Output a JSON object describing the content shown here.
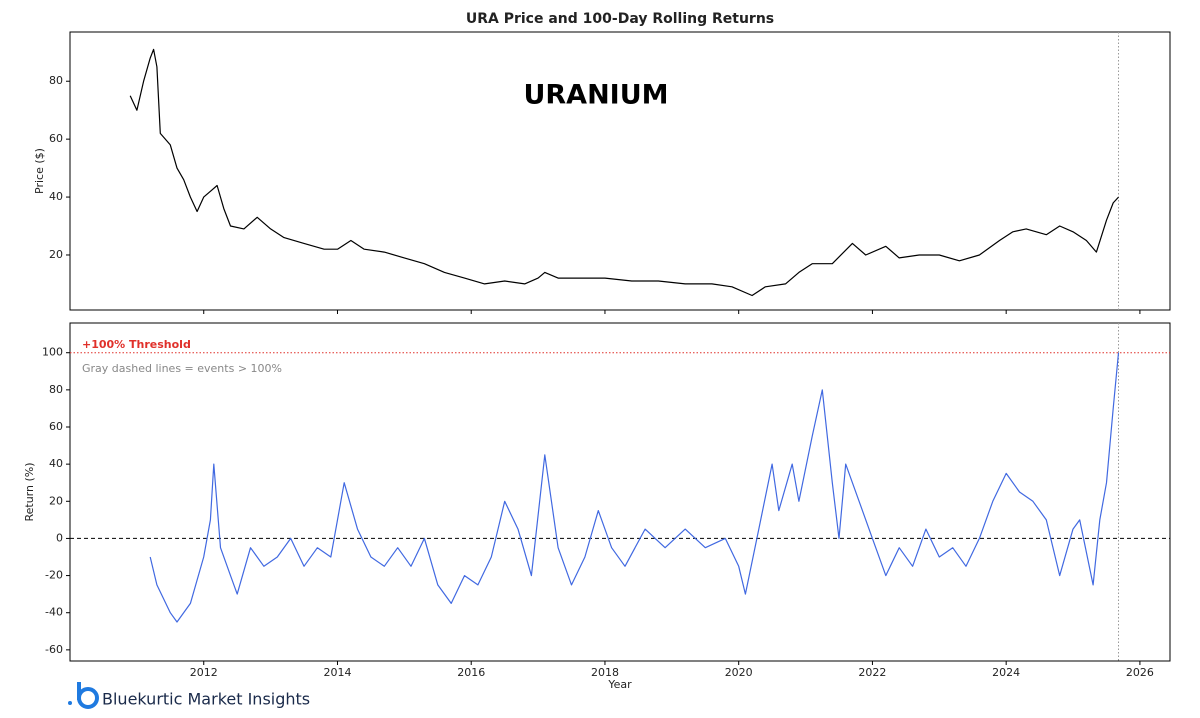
{
  "brand": "Bluekurtic Market Insights",
  "chart_data": [
    {
      "type": "line",
      "title": "URA Price and 100-Day Rolling Returns",
      "annotation": "URANIUM",
      "ylabel": "Price ($)",
      "xlim": [
        2010.0,
        2026.45
      ],
      "ylim": [
        1,
        97
      ],
      "xticks": [
        2012,
        2014,
        2016,
        2018,
        2020,
        2022,
        2024,
        2026
      ],
      "yticks": [
        20,
        40,
        60,
        80
      ],
      "events": [
        2025.68
      ],
      "series": [
        {
          "name": "URA Price",
          "color": "#000000",
          "x": [
            2010.9,
            2011.0,
            2011.1,
            2011.2,
            2011.25,
            2011.3,
            2011.35,
            2011.5,
            2011.6,
            2011.7,
            2011.8,
            2011.9,
            2012.0,
            2012.1,
            2012.2,
            2012.3,
            2012.4,
            2012.6,
            2012.8,
            2013.0,
            2013.2,
            2013.5,
            2013.8,
            2014.0,
            2014.2,
            2014.4,
            2014.7,
            2015.0,
            2015.3,
            2015.6,
            2015.9,
            2016.2,
            2016.5,
            2016.8,
            2017.0,
            2017.1,
            2017.3,
            2017.6,
            2018.0,
            2018.4,
            2018.8,
            2019.2,
            2019.6,
            2019.9,
            2020.2,
            2020.4,
            2020.7,
            2020.9,
            2021.1,
            2021.4,
            2021.7,
            2021.9,
            2022.2,
            2022.4,
            2022.7,
            2023.0,
            2023.3,
            2023.6,
            2023.9,
            2024.1,
            2024.3,
            2024.6,
            2024.8,
            2025.0,
            2025.2,
            2025.35,
            2025.5,
            2025.6,
            2025.68
          ],
          "values": [
            75,
            70,
            80,
            88,
            91,
            85,
            62,
            58,
            50,
            46,
            40,
            35,
            40,
            42,
            44,
            36,
            30,
            29,
            33,
            29,
            26,
            24,
            22,
            22,
            25,
            22,
            21,
            19,
            17,
            14,
            12,
            10,
            11,
            10,
            12,
            14,
            12,
            12,
            12,
            11,
            11,
            10,
            10,
            9,
            6,
            9,
            10,
            14,
            17,
            17,
            24,
            20,
            23,
            19,
            20,
            20,
            18,
            20,
            25,
            28,
            29,
            27,
            30,
            28,
            25,
            21,
            32,
            38,
            40
          ]
        }
      ]
    },
    {
      "type": "line",
      "xlabel": "Year",
      "ylabel": "Return (%)",
      "xlim": [
        2010.0,
        2026.45
      ],
      "ylim": [
        -66,
        116
      ],
      "xticks": [
        2012,
        2014,
        2016,
        2018,
        2020,
        2022,
        2024,
        2026
      ],
      "yticks": [
        -60,
        -40,
        -20,
        0,
        20,
        40,
        60,
        80,
        100
      ],
      "events": [
        2025.68
      ],
      "zero_line": 0,
      "threshold": {
        "value": 100,
        "label": "+100% Threshold",
        "color": "#e0302a"
      },
      "note": "Gray dashed lines = events > 100%",
      "series": [
        {
          "name": "100-Day Rolling Return",
          "color": "#4169e1",
          "x": [
            2011.2,
            2011.3,
            2011.5,
            2011.6,
            2011.8,
            2012.0,
            2012.1,
            2012.15,
            2012.25,
            2012.4,
            2012.5,
            2012.7,
            2012.9,
            2013.1,
            2013.3,
            2013.5,
            2013.7,
            2013.9,
            2014.1,
            2014.3,
            2014.5,
            2014.7,
            2014.9,
            2015.1,
            2015.3,
            2015.5,
            2015.7,
            2015.9,
            2016.1,
            2016.3,
            2016.5,
            2016.7,
            2016.9,
            2017.1,
            2017.3,
            2017.5,
            2017.7,
            2017.9,
            2018.1,
            2018.3,
            2018.6,
            2018.9,
            2019.2,
            2019.5,
            2019.8,
            2020.0,
            2020.1,
            2020.3,
            2020.5,
            2020.6,
            2020.8,
            2020.9,
            2021.1,
            2021.25,
            2021.4,
            2021.5,
            2021.6,
            2021.8,
            2022.0,
            2022.2,
            2022.4,
            2022.6,
            2022.8,
            2023.0,
            2023.2,
            2023.4,
            2023.6,
            2023.8,
            2024.0,
            2024.2,
            2024.4,
            2024.6,
            2024.8,
            2025.0,
            2025.1,
            2025.3,
            2025.4,
            2025.5,
            2025.6,
            2025.68
          ],
          "values": [
            -10,
            -25,
            -40,
            -45,
            -35,
            -10,
            10,
            40,
            -5,
            -20,
            -30,
            -5,
            -15,
            -10,
            0,
            -15,
            -5,
            -10,
            30,
            5,
            -10,
            -15,
            -5,
            -15,
            0,
            -25,
            -35,
            -20,
            -25,
            -10,
            20,
            5,
            -20,
            45,
            -5,
            -25,
            -10,
            15,
            -5,
            -15,
            5,
            -5,
            5,
            -5,
            0,
            -15,
            -30,
            5,
            40,
            15,
            40,
            20,
            55,
            80,
            30,
            0,
            40,
            20,
            0,
            -20,
            -5,
            -15,
            5,
            -10,
            -5,
            -15,
            0,
            20,
            35,
            25,
            20,
            10,
            -20,
            5,
            10,
            -25,
            10,
            30,
            70,
            100
          ]
        }
      ]
    }
  ]
}
